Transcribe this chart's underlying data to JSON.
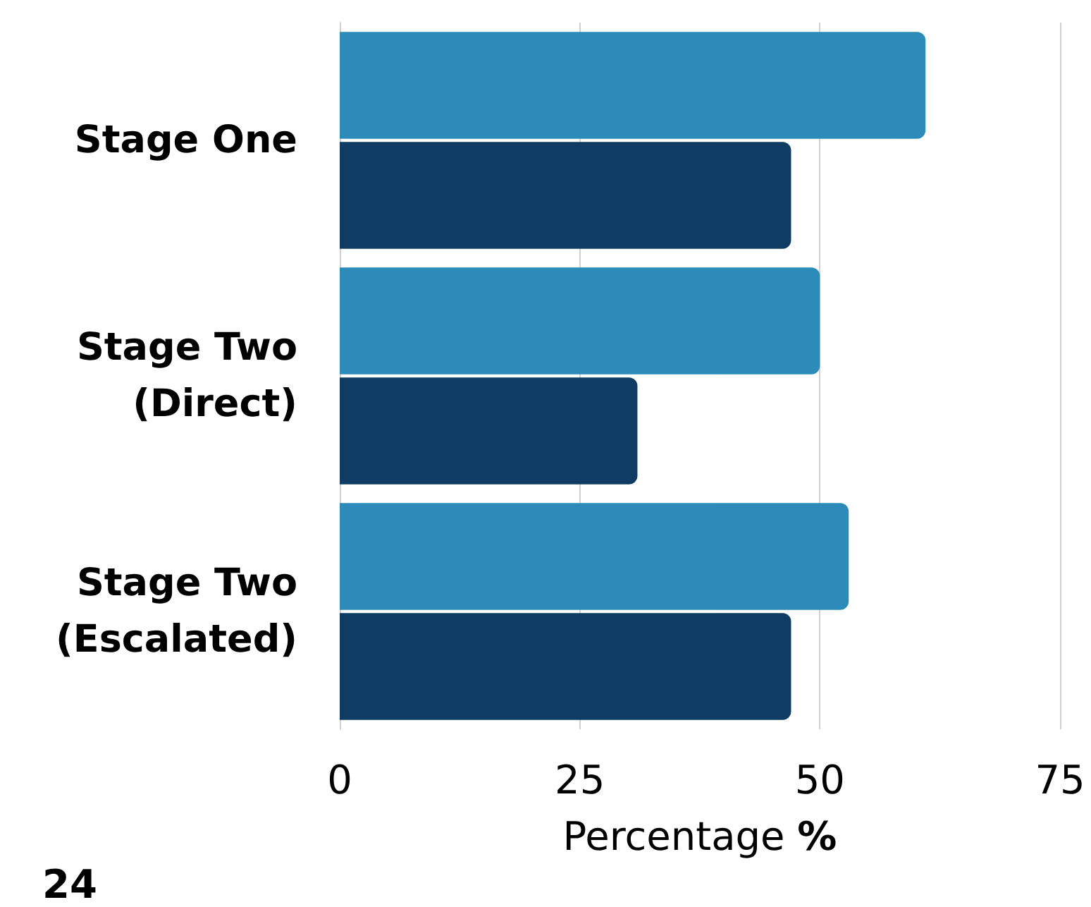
{
  "chart_data": {
    "type": "bar",
    "orientation": "horizontal",
    "categories": [
      "Stage One",
      "Stage Two\n(Direct)",
      "Stage Two\n(Escalated)"
    ],
    "series": [
      {
        "color": "#2d8bba",
        "values": [
          61,
          50,
          53
        ]
      },
      {
        "color": "#0e3c62",
        "values": [
          47,
          31,
          47
        ]
      }
    ],
    "xlabel": "Percentage %",
    "xlim": [
      0,
      75
    ],
    "xticks": [
      0,
      25,
      50,
      75
    ],
    "grid": "x",
    "annotations": [
      "24"
    ]
  }
}
